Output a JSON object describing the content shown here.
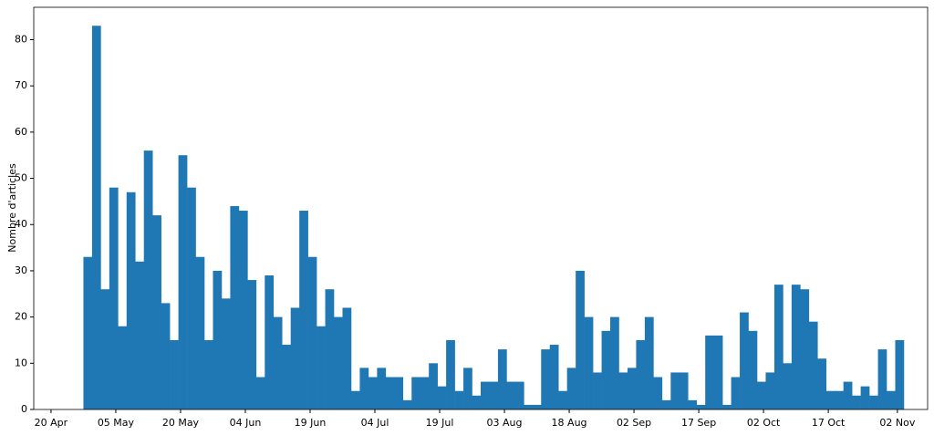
{
  "chart_data": {
    "type": "histogram",
    "y_label": "Nombre d'articles",
    "color": "#1f77b4",
    "bins": [
      117.5,
      119.5,
      121.5,
      123.5,
      125.5,
      127.5,
      129.5,
      131.5,
      133.5,
      135.5,
      137.5,
      139.5,
      141.5,
      143.5,
      145.5,
      147.5,
      149.5,
      151.5,
      153.5,
      155.5,
      157.5,
      159.5,
      161.5,
      163.5,
      165.5,
      167.5,
      169.5,
      171.5,
      173.5,
      175.5,
      177.5,
      179.5,
      181.5,
      183.5,
      185.5,
      187.5,
      189.5,
      191.5,
      193.5,
      195.5,
      197.5,
      199.5,
      201.5,
      203.5,
      205.5,
      207.5,
      209.5,
      211.5,
      213.5,
      215.5,
      217.5,
      219.5,
      221.5,
      223.5,
      225.5,
      227.5,
      229.5,
      231.5,
      233.5,
      235.5,
      237.5,
      239.5,
      241.5,
      243.5,
      245.5,
      247.5,
      249.5,
      251.5,
      253.5,
      255.5,
      257.5,
      259.5,
      261.5,
      263.5,
      265.5,
      267.5,
      269.5,
      271.5,
      273.5,
      275.5,
      277.5,
      279.5,
      281.5,
      283.5,
      285.5,
      287.5,
      289.5,
      291.5,
      293.5,
      295.5,
      297.5,
      299.5,
      301.5,
      303.5,
      305.5,
      307.5
    ],
    "values": [
      33,
      83,
      26,
      48,
      18,
      47,
      32,
      56,
      42,
      23,
      15,
      55,
      48,
      33,
      15,
      30,
      24,
      44,
      43,
      28,
      7,
      29,
      20,
      14,
      22,
      43,
      33,
      18,
      26,
      20,
      22,
      4,
      9,
      7,
      9,
      7,
      7,
      2,
      7,
      7,
      10,
      5,
      15,
      4,
      9,
      3,
      6,
      6,
      13,
      6,
      6,
      1,
      1,
      13,
      14,
      4,
      9,
      30,
      20,
      8,
      17,
      20,
      8,
      9,
      15,
      20,
      7,
      2,
      8,
      8,
      2,
      1,
      16,
      16,
      1,
      7,
      21,
      17,
      6,
      8,
      27,
      10,
      27,
      26,
      19,
      11,
      4,
      4,
      6,
      3,
      5,
      3,
      13,
      4,
      15
    ],
    "xlim": [
      106,
      313
    ],
    "xticks": [
      {
        "value": 110,
        "label": "20 Apr"
      },
      {
        "value": 125,
        "label": "05 May"
      },
      {
        "value": 140,
        "label": "20 May"
      },
      {
        "value": 155,
        "label": "04 Jun"
      },
      {
        "value": 170,
        "label": "19 Jun"
      },
      {
        "value": 185,
        "label": "04 Jul"
      },
      {
        "value": 200,
        "label": "19 Jul"
      },
      {
        "value": 215,
        "label": "03 Aug"
      },
      {
        "value": 230,
        "label": "18 Aug"
      },
      {
        "value": 245,
        "label": "02 Sep"
      },
      {
        "value": 260,
        "label": "17 Sep"
      },
      {
        "value": 275,
        "label": "02 Oct"
      },
      {
        "value": 290,
        "label": "17 Oct"
      },
      {
        "value": 306,
        "label": "02 Nov"
      }
    ],
    "ylim": [
      0,
      87
    ],
    "yticks": [
      0,
      10,
      20,
      30,
      40,
      50,
      60,
      70,
      80
    ]
  }
}
